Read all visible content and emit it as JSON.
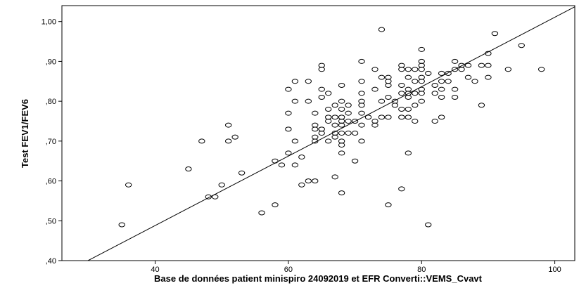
{
  "chart_data": {
    "type": "scatter",
    "xlabel": "Base de données patient minispiro 24092019 et EFR Converti::VEMS_Cvavt",
    "ylabel": "Test FEV1/FEV6",
    "xlim": [
      26,
      103
    ],
    "ylim": [
      0.4,
      1.04
    ],
    "x_ticks": [
      40,
      60,
      80,
      100
    ],
    "x_tick_labels": [
      "40",
      "60",
      "80",
      "100"
    ],
    "y_ticks": [
      0.4,
      0.5,
      0.6,
      0.7,
      0.8,
      0.9,
      1.0
    ],
    "y_tick_labels": [
      ",40",
      ",50",
      ",60",
      ",70",
      ",80",
      ",90",
      "1,00"
    ],
    "fit_line": {
      "x": [
        26,
        103
      ],
      "y": [
        0.366,
        1.037
      ]
    },
    "points": [
      [
        35,
        0.49
      ],
      [
        36,
        0.59
      ],
      [
        45,
        0.63
      ],
      [
        47,
        0.7
      ],
      [
        48,
        0.56
      ],
      [
        49,
        0.56
      ],
      [
        50,
        0.59
      ],
      [
        51,
        0.74
      ],
      [
        51,
        0.7
      ],
      [
        52,
        0.71
      ],
      [
        53,
        0.62
      ],
      [
        56,
        0.52
      ],
      [
        58,
        0.54
      ],
      [
        58,
        0.65
      ],
      [
        59,
        0.64
      ],
      [
        60,
        0.83
      ],
      [
        60,
        0.77
      ],
      [
        60,
        0.73
      ],
      [
        60,
        0.67
      ],
      [
        61,
        0.85
      ],
      [
        61,
        0.8
      ],
      [
        61,
        0.7
      ],
      [
        61,
        0.64
      ],
      [
        62,
        0.66
      ],
      [
        62,
        0.59
      ],
      [
        63,
        0.85
      ],
      [
        63,
        0.8
      ],
      [
        63,
        0.6
      ],
      [
        64,
        0.77
      ],
      [
        64,
        0.74
      ],
      [
        64,
        0.73
      ],
      [
        64,
        0.71
      ],
      [
        64,
        0.7
      ],
      [
        64,
        0.6
      ],
      [
        65,
        0.89
      ],
      [
        65,
        0.88
      ],
      [
        65,
        0.83
      ],
      [
        65,
        0.81
      ],
      [
        65,
        0.73
      ],
      [
        65,
        0.72
      ],
      [
        66,
        0.82
      ],
      [
        66,
        0.78
      ],
      [
        66,
        0.76
      ],
      [
        66,
        0.75
      ],
      [
        66,
        0.7
      ],
      [
        67,
        0.79
      ],
      [
        67,
        0.76
      ],
      [
        67,
        0.74
      ],
      [
        67,
        0.72
      ],
      [
        67,
        0.71
      ],
      [
        67,
        0.61
      ],
      [
        68,
        0.84
      ],
      [
        68,
        0.8
      ],
      [
        68,
        0.78
      ],
      [
        68,
        0.76
      ],
      [
        68,
        0.75
      ],
      [
        68,
        0.74
      ],
      [
        68,
        0.72
      ],
      [
        68,
        0.7
      ],
      [
        68,
        0.69
      ],
      [
        68,
        0.67
      ],
      [
        68,
        0.57
      ],
      [
        69,
        0.79
      ],
      [
        69,
        0.77
      ],
      [
        69,
        0.75
      ],
      [
        69,
        0.72
      ],
      [
        70,
        0.75
      ],
      [
        70,
        0.72
      ],
      [
        70,
        0.65
      ],
      [
        71,
        0.9
      ],
      [
        71,
        0.85
      ],
      [
        71,
        0.82
      ],
      [
        71,
        0.8
      ],
      [
        71,
        0.79
      ],
      [
        71,
        0.77
      ],
      [
        71,
        0.74
      ],
      [
        71,
        0.7
      ],
      [
        72,
        0.76
      ],
      [
        73,
        0.88
      ],
      [
        73,
        0.83
      ],
      [
        73,
        0.75
      ],
      [
        73,
        0.74
      ],
      [
        74,
        0.98
      ],
      [
        74,
        0.86
      ],
      [
        74,
        0.8
      ],
      [
        74,
        0.76
      ],
      [
        75,
        0.86
      ],
      [
        75,
        0.85
      ],
      [
        75,
        0.84
      ],
      [
        75,
        0.81
      ],
      [
        75,
        0.76
      ],
      [
        75,
        0.54
      ],
      [
        76,
        0.79
      ],
      [
        76,
        0.8
      ],
      [
        77,
        0.89
      ],
      [
        77,
        0.88
      ],
      [
        77,
        0.84
      ],
      [
        77,
        0.82
      ],
      [
        77,
        0.78
      ],
      [
        77,
        0.76
      ],
      [
        77,
        0.58
      ],
      [
        78,
        0.88
      ],
      [
        78,
        0.86
      ],
      [
        78,
        0.83
      ],
      [
        78,
        0.82
      ],
      [
        78,
        0.81
      ],
      [
        78,
        0.78
      ],
      [
        78,
        0.76
      ],
      [
        78,
        0.67
      ],
      [
        79,
        0.88
      ],
      [
        79,
        0.85
      ],
      [
        79,
        0.82
      ],
      [
        79,
        0.79
      ],
      [
        79,
        0.75
      ],
      [
        80,
        0.93
      ],
      [
        80,
        0.9
      ],
      [
        80,
        0.89
      ],
      [
        80,
        0.88
      ],
      [
        80,
        0.86
      ],
      [
        80,
        0.85
      ],
      [
        80,
        0.83
      ],
      [
        80,
        0.82
      ],
      [
        80,
        0.8
      ],
      [
        81,
        0.87
      ],
      [
        81,
        0.49
      ],
      [
        82,
        0.84
      ],
      [
        82,
        0.82
      ],
      [
        82,
        0.75
      ],
      [
        83,
        0.87
      ],
      [
        83,
        0.85
      ],
      [
        83,
        0.83
      ],
      [
        83,
        0.81
      ],
      [
        83,
        0.76
      ],
      [
        84,
        0.87
      ],
      [
        84,
        0.85
      ],
      [
        85,
        0.9
      ],
      [
        85,
        0.88
      ],
      [
        85,
        0.83
      ],
      [
        85,
        0.81
      ],
      [
        86,
        0.89
      ],
      [
        86,
        0.88
      ],
      [
        87,
        0.89
      ],
      [
        87,
        0.86
      ],
      [
        88,
        0.85
      ],
      [
        89,
        0.89
      ],
      [
        89,
        0.79
      ],
      [
        90,
        0.92
      ],
      [
        90,
        0.89
      ],
      [
        90,
        0.86
      ],
      [
        91,
        0.97
      ],
      [
        93,
        0.88
      ],
      [
        95,
        0.94
      ],
      [
        98,
        0.88
      ]
    ]
  }
}
